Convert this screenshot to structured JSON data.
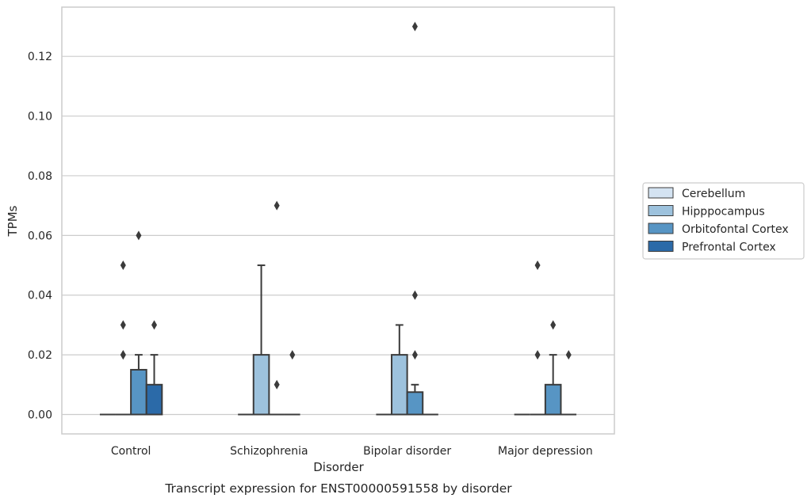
{
  "chart_data": {
    "type": "box",
    "caption": "Transcript expression for ENST00000591558 by disorder",
    "xlabel": "Disorder",
    "ylabel": "TPMs",
    "ylim": [
      -0.0065,
      0.1365
    ],
    "yticks": [
      0.0,
      0.02,
      0.04,
      0.06,
      0.08,
      0.1,
      0.12
    ],
    "ytick_labels": [
      "0.00",
      "0.02",
      "0.04",
      "0.06",
      "0.08",
      "0.10",
      "0.12"
    ],
    "grid": true,
    "legend_position": "right",
    "categories": [
      "Control",
      "Schizophrenia",
      "Bipolar disorder",
      "Major depression"
    ],
    "series": [
      {
        "name": "Cerebellum",
        "color": "#d4e3f2",
        "boxes": [
          {
            "q1": 0,
            "median": 0,
            "q3": 0,
            "whisker_low": 0,
            "whisker_high": 0,
            "outliers": []
          },
          {
            "q1": 0,
            "median": 0,
            "q3": 0,
            "whisker_low": 0,
            "whisker_high": 0,
            "outliers": []
          },
          {
            "q1": 0,
            "median": 0,
            "q3": 0,
            "whisker_low": 0,
            "whisker_high": 0,
            "outliers": []
          },
          {
            "q1": 0,
            "median": 0,
            "q3": 0,
            "whisker_low": 0,
            "whisker_high": 0,
            "outliers": []
          }
        ]
      },
      {
        "name": "Hipppocampus",
        "color": "#9dc2dd",
        "boxes": [
          {
            "q1": 0,
            "median": 0,
            "q3": 0,
            "whisker_low": 0,
            "whisker_high": 0,
            "outliers": [
              0.02,
              0.03,
              0.05,
              0.02
            ]
          },
          {
            "q1": 0,
            "median": 0,
            "q3": 0.02,
            "whisker_low": 0,
            "whisker_high": 0.05,
            "outliers": []
          },
          {
            "q1": 0,
            "median": 0,
            "q3": 0.02,
            "whisker_low": 0,
            "whisker_high": 0.03,
            "outliers": []
          },
          {
            "q1": 0,
            "median": 0,
            "q3": 0,
            "whisker_low": 0,
            "whisker_high": 0,
            "outliers": [
              0.02,
              0.05
            ]
          }
        ]
      },
      {
        "name": "Orbitofontal Cortex",
        "color": "#5795c4",
        "boxes": [
          {
            "q1": 0,
            "median": 0,
            "q3": 0.015,
            "whisker_low": 0,
            "whisker_high": 0.02,
            "outliers": [
              0.06
            ]
          },
          {
            "q1": 0,
            "median": 0,
            "q3": 0,
            "whisker_low": 0,
            "whisker_high": 0,
            "outliers": [
              0.01,
              0.07
            ]
          },
          {
            "q1": 0,
            "median": 0,
            "q3": 0.0075,
            "whisker_low": 0,
            "whisker_high": 0.01,
            "outliers": [
              0.02,
              0.04,
              0.13
            ]
          },
          {
            "q1": 0,
            "median": 0,
            "q3": 0.01,
            "whisker_low": 0,
            "whisker_high": 0.02,
            "outliers": [
              0.03
            ]
          }
        ]
      },
      {
        "name": "Prefrontal Cortex",
        "color": "#2b6aa8",
        "boxes": [
          {
            "q1": 0,
            "median": 0,
            "q3": 0.01,
            "whisker_low": 0,
            "whisker_high": 0.02,
            "outliers": [
              0.03
            ]
          },
          {
            "q1": 0,
            "median": 0,
            "q3": 0,
            "whisker_low": 0,
            "whisker_high": 0,
            "outliers": [
              0.02
            ]
          },
          {
            "q1": 0,
            "median": 0,
            "q3": 0,
            "whisker_low": 0,
            "whisker_high": 0,
            "outliers": []
          },
          {
            "q1": 0,
            "median": 0,
            "q3": 0,
            "whisker_low": 0,
            "whisker_high": 0,
            "outliers": [
              0.02
            ]
          }
        ]
      }
    ]
  }
}
